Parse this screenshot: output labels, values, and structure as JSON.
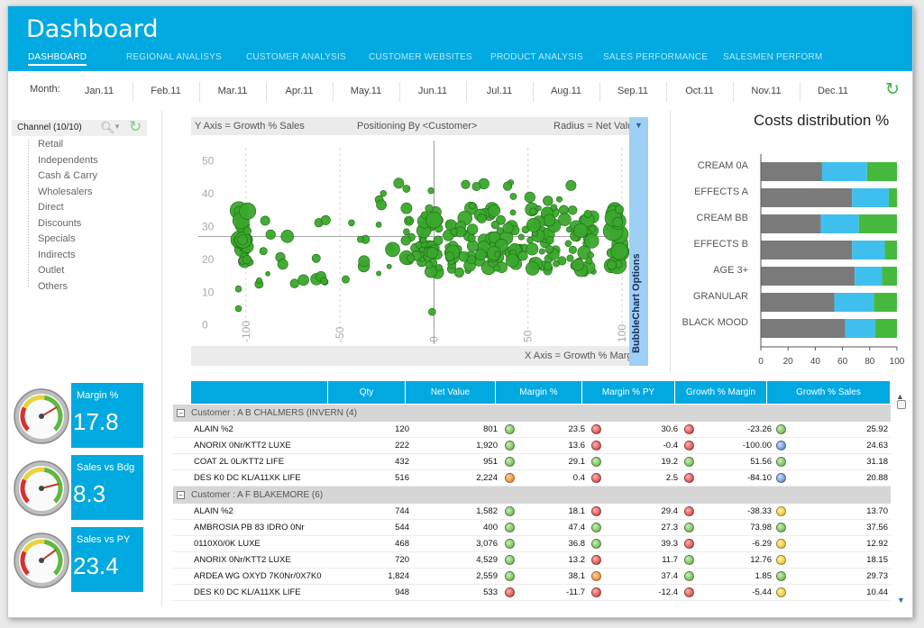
{
  "app": {
    "title": "Dashboard"
  },
  "nav": {
    "tabs": [
      {
        "label": "DASHBOARD",
        "active": true
      },
      {
        "label": "REGIONAL ANALISYS"
      },
      {
        "label": "CUSTOMER ANALYSIS"
      },
      {
        "label": "CUSTOMER WEBSITES"
      },
      {
        "label": "PRODUCT ANALYSIS"
      },
      {
        "label": "SALES PERFORMANCE"
      },
      {
        "label": "SALESMEN PERFORM"
      }
    ]
  },
  "months": {
    "label": "Month:",
    "items": [
      "Jan.11",
      "Feb.11",
      "Mar.11",
      "Apr.11",
      "May.11",
      "Jun.11",
      "Jul.11",
      "Aug.11",
      "Sep.11",
      "Oct.11",
      "Nov.11",
      "Dec.11"
    ],
    "refresh_icon": "refresh-icon"
  },
  "channel": {
    "header": "Channel (10/10)",
    "items": [
      "Retail",
      "Independents",
      "Cash & Carry",
      "Wholesalers",
      "Direct",
      "Discounts",
      "Specials",
      "Indirects",
      "Outlet",
      "Others"
    ]
  },
  "kpis": [
    {
      "label": "Margin %",
      "value": "17.8",
      "needle": 0.72
    },
    {
      "label": "Sales vs Bdg",
      "value": "8.3",
      "needle": 0.78
    },
    {
      "label": "Sales vs PY",
      "value": "23.4",
      "needle": 0.7
    }
  ],
  "bubble": {
    "y_axis": "Y Axis = Growth % Sales",
    "positioning": "Positioning By <Customer>",
    "radius": "Radius = Net Value",
    "x_axis": "X Axis = Growth % Margin",
    "options_label": "BubbleChart Options"
  },
  "chart_data": [
    {
      "type": "scatter",
      "title": "",
      "xlabel": "X Axis = Growth % Margin",
      "ylabel": "Y Axis = Growth % Sales",
      "xlim": [
        -110,
        100
      ],
      "ylim": [
        -2,
        54
      ],
      "x_ticks": [
        "-100",
        "-50",
        "0",
        "50",
        "100"
      ],
      "y_ticks": [
        "0",
        "10",
        "20",
        "30",
        "40",
        "50"
      ],
      "color": "#3aa62c"
    },
    {
      "type": "bar",
      "stacked": true,
      "orientation": "horizontal",
      "title": "Costs distribution %",
      "categories": [
        "CREAM 0A",
        "EFFECTS A",
        "CREAM BB",
        "EFFECTS  B",
        "AGE 3+",
        "GRANULAR",
        "BLACK MOOD"
      ],
      "series": [
        {
          "values": [
            45,
            67,
            44,
            67,
            69,
            54,
            62
          ],
          "color": "#7a7a7a"
        },
        {
          "values": [
            33,
            27,
            28,
            24,
            20,
            29,
            22
          ],
          "color": "#3fbfee"
        },
        {
          "values": [
            22,
            6,
            28,
            9,
            11,
            17,
            16
          ],
          "color": "#45b93e"
        }
      ],
      "x_ticks": [
        "0",
        "20",
        "40",
        "60",
        "80",
        "100"
      ],
      "xlim": [
        0,
        100
      ]
    }
  ],
  "grid": {
    "columns": [
      "Qty",
      "Net Value",
      "Margin %",
      "Margin % PY",
      "Growth % Margin",
      "Growth % Sales"
    ],
    "groups": [
      {
        "label": "Customer : A B CHALMERS (INVERN (4)",
        "toggle": "−",
        "rows": [
          {
            "name": "ALAIN %2",
            "qty": "120",
            "net": "801",
            "m_dot": "green",
            "margin": "23.5",
            "py_dot": "red",
            "margin_py": "30.6",
            "gm_dot": "red",
            "growth_margin": "-23.26",
            "gs_dot": "green",
            "growth_sales": "25.92"
          },
          {
            "name": "ANORIX 0Nr/KTT2 LUXE",
            "qty": "222",
            "net": "1,920",
            "m_dot": "green",
            "margin": "13.6",
            "py_dot": "red",
            "margin_py": "-0.4",
            "gm_dot": "red",
            "growth_margin": "-100.00",
            "gs_dot": "blue",
            "growth_sales": "24.63"
          },
          {
            "name": "COAT 2L 0L/KTT2 LIFE",
            "qty": "432",
            "net": "951",
            "m_dot": "green",
            "margin": "29.1",
            "py_dot": "green",
            "margin_py": "19.2",
            "gm_dot": "green",
            "growth_margin": "51.56",
            "gs_dot": "green",
            "growth_sales": "31.18"
          },
          {
            "name": "DES K0 DC KL/A11XK LIFE",
            "qty": "516",
            "net": "2,224",
            "m_dot": "orange",
            "margin": "0.4",
            "py_dot": "red",
            "margin_py": "2.5",
            "gm_dot": "red",
            "growth_margin": "-84.10",
            "gs_dot": "blue",
            "growth_sales": "20.88"
          }
        ]
      },
      {
        "label": "Customer : A F BLAKEMORE (6)",
        "toggle": "−",
        "rows": [
          {
            "name": "ALAIN %2",
            "qty": "744",
            "net": "1,582",
            "m_dot": "green",
            "margin": "18.1",
            "py_dot": "red",
            "margin_py": "29.4",
            "gm_dot": "red",
            "growth_margin": "-38.33",
            "gs_dot": "yellow",
            "growth_sales": "13.70"
          },
          {
            "name": "AMBROSIA PB 83 IDRO 0Nr",
            "qty": "544",
            "net": "400",
            "m_dot": "green",
            "margin": "47.4",
            "py_dot": "green",
            "margin_py": "27.3",
            "gm_dot": "green",
            "growth_margin": "73.98",
            "gs_dot": "green",
            "growth_sales": "37.56"
          },
          {
            "name": "0110X0/0K LUXE",
            "qty": "468",
            "net": "3,076",
            "m_dot": "green",
            "margin": "36.8",
            "py_dot": "green",
            "margin_py": "39.3",
            "gm_dot": "red",
            "growth_margin": "-6.29",
            "gs_dot": "yellow",
            "growth_sales": "12.92"
          },
          {
            "name": "ANORIX 0Nr/KTT2 LUXE",
            "qty": "720",
            "net": "4,529",
            "m_dot": "green",
            "margin": "13.2",
            "py_dot": "red",
            "margin_py": "11.7",
            "gm_dot": "green",
            "growth_margin": "12.76",
            "gs_dot": "yellow",
            "growth_sales": "18.15"
          },
          {
            "name": "ARDEA WG OXYD 7K0Nr/0X7K0",
            "qty": "1,824",
            "net": "2,559",
            "m_dot": "green",
            "margin": "38.1",
            "py_dot": "orange",
            "margin_py": "37.4",
            "gm_dot": "green",
            "growth_margin": "1.85",
            "gs_dot": "green",
            "growth_sales": "29.73"
          },
          {
            "name": "DES K0 DC KL/A11XK LIFE",
            "qty": "948",
            "net": "533",
            "m_dot": "red",
            "margin": "-11.7",
            "py_dot": "red",
            "margin_py": "-12.4",
            "gm_dot": "red",
            "growth_margin": "-5.44",
            "gs_dot": "yellow",
            "growth_sales": "10.44"
          }
        ]
      }
    ]
  }
}
